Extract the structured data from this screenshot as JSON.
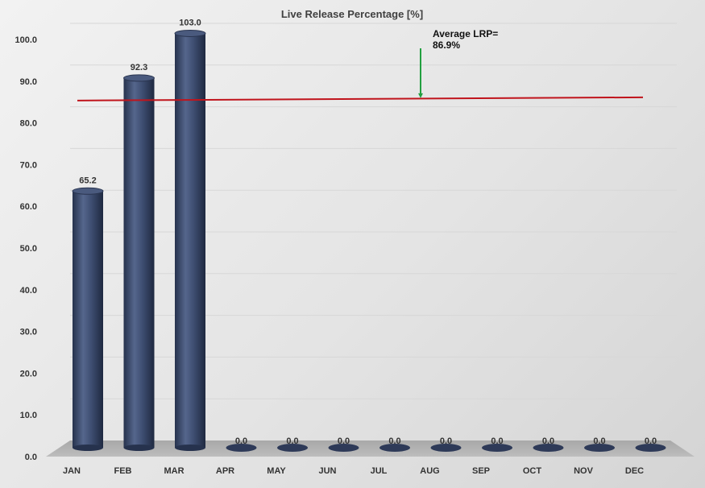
{
  "chart_data": {
    "type": "bar",
    "title": "Live Release Percentage [%]",
    "xlabel": "",
    "ylabel": "",
    "categories": [
      "JAN",
      "FEB",
      "MAR",
      "APR",
      "MAY",
      "JUN",
      "JUL",
      "AUG",
      "SEP",
      "OCT",
      "NOV",
      "DEC"
    ],
    "values": [
      65.2,
      92.3,
      103.0,
      0.0,
      0.0,
      0.0,
      0.0,
      0.0,
      0.0,
      0.0,
      0.0,
      0.0
    ],
    "value_labels": [
      "65.2",
      "92.3",
      "103.0",
      "0.0",
      "0.0",
      "0.0",
      "0.0",
      "0.0",
      "0.0",
      "0.0",
      "0.0",
      "0.0"
    ],
    "yticks": [
      "0.0",
      "10.0",
      "20.0",
      "30.0",
      "40.0",
      "50.0",
      "60.0",
      "70.0",
      "80.0",
      "90.0",
      "100.0"
    ],
    "ylim": [
      0,
      100
    ],
    "grid": true,
    "average_line": {
      "value": 86.9,
      "color": "#c0141c"
    },
    "annotation": {
      "lines": [
        "Average LRP=",
        "86.9%"
      ],
      "arrow_color": "#22a040"
    },
    "bar_color": "#3b4a6b"
  }
}
